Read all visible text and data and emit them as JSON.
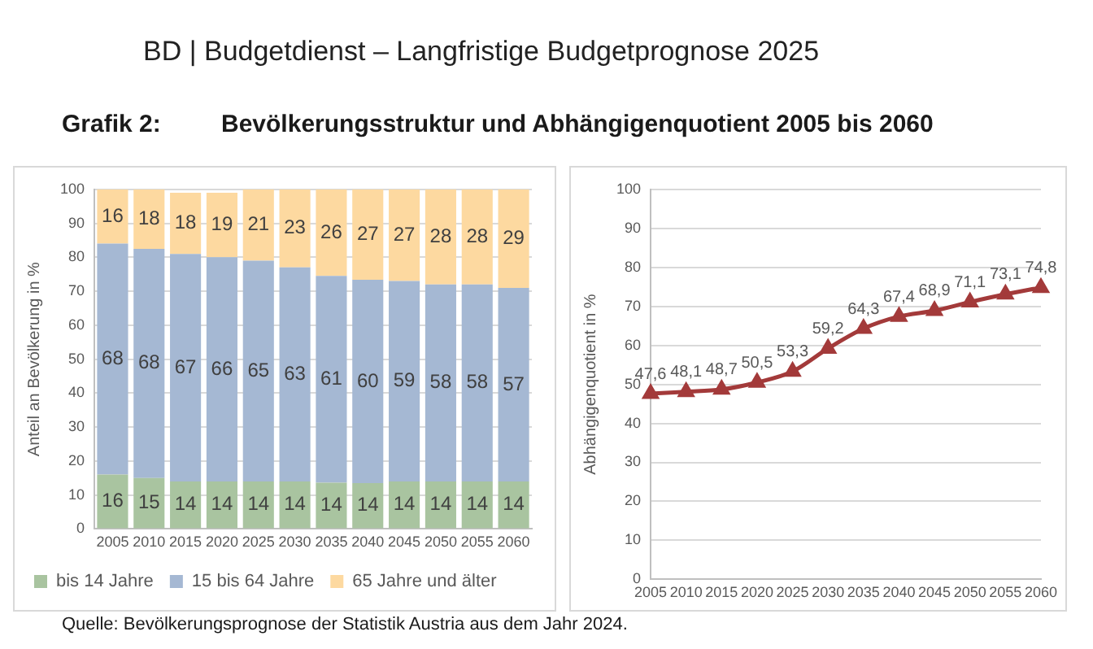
{
  "chart_data": [
    {
      "type": "bar",
      "title": "Bevölkerungsstruktur und Abhängigenquotient 2005 bis 2060",
      "annotations": [
        "BD | Budgetdienst – Langfristige Budgetprognose 2025",
        "Grafik 2:",
        "Quelle: Bevölkerungsprognose der Statistik Austria aus dem Jahr 2024."
      ],
      "ylabel": "Anteil an Bevölkerung in %",
      "categories": [
        "2005",
        "2010",
        "2015",
        "2020",
        "2025",
        "2030",
        "2035",
        "2040",
        "2045",
        "2050",
        "2055",
        "2060"
      ],
      "stacked": true,
      "legend": "bottom",
      "grid": "y",
      "ylim": [
        0,
        100
      ],
      "yticks": [
        0,
        10,
        20,
        30,
        40,
        50,
        60,
        70,
        80,
        90,
        100
      ],
      "series": [
        {
          "name": "bis 14 Jahre",
          "color": "#a9c4a0",
          "values": [
            16,
            15,
            14,
            14,
            14,
            14,
            13.6,
            13.5,
            14,
            14,
            14,
            14
          ],
          "value_labels": [
            "16",
            "15",
            "14",
            "14",
            "14",
            "14",
            "14",
            "14",
            "14",
            "14",
            "14",
            "14"
          ]
        },
        {
          "name": "15 bis 64 Jahre",
          "color": "#a5b8d3",
          "values": [
            68,
            67.5,
            67,
            66,
            65,
            63,
            60.9,
            59.9,
            59,
            58,
            58,
            57
          ],
          "value_labels": [
            "68",
            "68",
            "67",
            "66",
            "65",
            "63",
            "61",
            "60",
            "59",
            "58",
            "58",
            "57"
          ]
        },
        {
          "name": "65 Jahre und älter",
          "color": "#fdd9a0",
          "values": [
            16,
            17.5,
            18,
            19,
            21,
            23,
            25.5,
            26.6,
            27,
            28,
            28,
            29
          ],
          "value_labels": [
            "16",
            "18",
            "18",
            "19",
            "21",
            "23",
            "26",
            "27",
            "27",
            "28",
            "28",
            "29"
          ]
        }
      ]
    },
    {
      "type": "line",
      "ylabel": "Abhängigenquotient in %",
      "categories": [
        "2005",
        "2010",
        "2015",
        "2020",
        "2025",
        "2030",
        "2035",
        "2040",
        "2045",
        "2050",
        "2055",
        "2060"
      ],
      "grid": "y",
      "marker": "triangle",
      "ylim": [
        0,
        100
      ],
      "yticks": [
        0,
        10,
        20,
        30,
        40,
        50,
        60,
        70,
        80,
        90,
        100
      ],
      "series": [
        {
          "color": "#a33a3a",
          "values": [
            47.6,
            48.1,
            48.7,
            50.5,
            53.3,
            59.2,
            64.3,
            67.4,
            68.9,
            71.1,
            73.1,
            74.8
          ],
          "value_labels": [
            "47,6",
            "48,1",
            "48,7",
            "50,5",
            "53,3",
            "59,2",
            "64,3",
            "67,4",
            "68,9",
            "71,1",
            "73,1",
            "74,8"
          ]
        }
      ]
    }
  ]
}
